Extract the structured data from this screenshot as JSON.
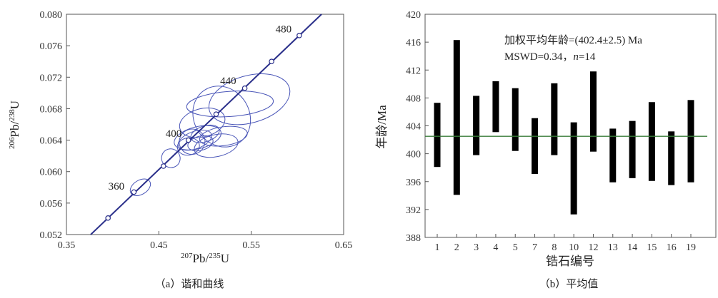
{
  "chart_data": [
    {
      "type": "scatter",
      "caption": "（a）谐和曲线",
      "xlabel": "207Pb/235U",
      "ylabel": "206Pb/238U",
      "xlim": [
        0.35,
        0.65
      ],
      "ylim": [
        0.052,
        0.08
      ],
      "xticks": [
        "0.35",
        "0.45",
        "0.55",
        "0.65"
      ],
      "yticks": [
        "0.052",
        "0.056",
        "0.060",
        "0.064",
        "0.068",
        "0.072",
        "0.076",
        "0.080"
      ],
      "concordia_points": [
        {
          "age": 340,
          "x": 0.395,
          "y": 0.0541
        },
        {
          "age": 360,
          "x": 0.423,
          "y": 0.0574
        },
        {
          "age": 380,
          "x": 0.455,
          "y": 0.0607
        },
        {
          "age": 400,
          "x": 0.482,
          "y": 0.064
        },
        {
          "age": 420,
          "x": 0.512,
          "y": 0.0673
        },
        {
          "age": 440,
          "x": 0.543,
          "y": 0.0706
        },
        {
          "age": 460,
          "x": 0.572,
          "y": 0.074
        },
        {
          "age": 480,
          "x": 0.602,
          "y": 0.0773
        }
      ],
      "age_labels": [
        {
          "text": "480",
          "x": 0.585,
          "y": 0.0777
        },
        {
          "text": "440",
          "x": 0.525,
          "y": 0.0711
        },
        {
          "text": "400",
          "x": 0.466,
          "y": 0.0644
        },
        {
          "text": "360",
          "x": 0.404,
          "y": 0.0577
        }
      ],
      "ellipses": [
        {
          "cx": 0.548,
          "cy": 0.0692,
          "rx": 0.045,
          "ry": 0.003,
          "rot": -16
        },
        {
          "cx": 0.527,
          "cy": 0.0686,
          "rx": 0.047,
          "ry": 0.0016,
          "rot": -4
        },
        {
          "cx": 0.518,
          "cy": 0.067,
          "rx": 0.03,
          "ry": 0.004,
          "rot": -32
        },
        {
          "cx": 0.497,
          "cy": 0.0662,
          "rx": 0.025,
          "ry": 0.0018,
          "rot": -14
        },
        {
          "cx": 0.52,
          "cy": 0.0645,
          "rx": 0.026,
          "ry": 0.0012,
          "rot": -8
        },
        {
          "cx": 0.512,
          "cy": 0.0633,
          "rx": 0.024,
          "ry": 0.0014,
          "rot": -12
        },
        {
          "cx": 0.492,
          "cy": 0.0643,
          "rx": 0.026,
          "ry": 0.0014,
          "rot": -14
        },
        {
          "cx": 0.489,
          "cy": 0.064,
          "rx": 0.019,
          "ry": 0.0011,
          "rot": -20
        },
        {
          "cx": 0.486,
          "cy": 0.0638,
          "rx": 0.014,
          "ry": 0.0016,
          "rot": -28
        },
        {
          "cx": 0.5,
          "cy": 0.0648,
          "rx": 0.016,
          "ry": 0.001,
          "rot": -18
        },
        {
          "cx": 0.482,
          "cy": 0.0632,
          "rx": 0.012,
          "ry": 0.0011,
          "rot": -10
        },
        {
          "cx": 0.495,
          "cy": 0.0636,
          "rx": 0.014,
          "ry": 0.0009,
          "rot": -15
        },
        {
          "cx": 0.463,
          "cy": 0.0617,
          "rx": 0.01,
          "ry": 0.0012,
          "rot": -30
        },
        {
          "cx": 0.43,
          "cy": 0.058,
          "rx": 0.012,
          "ry": 0.0009,
          "rot": -32
        }
      ]
    },
    {
      "type": "bar",
      "caption": "（b）平均值",
      "xlabel": "锆石编号",
      "ylabel": "年龄/Ma",
      "ylim": [
        388,
        420
      ],
      "yticks": [
        "388",
        "392",
        "396",
        "400",
        "404",
        "408",
        "412",
        "416",
        "420"
      ],
      "categories": [
        "1",
        "2",
        "3",
        "4",
        "5",
        "7",
        "8",
        "10",
        "12",
        "13",
        "14",
        "15",
        "16",
        "19"
      ],
      "ranges": [
        [
          398.1,
          407.3
        ],
        [
          394.1,
          416.3
        ],
        [
          399.8,
          408.3
        ],
        [
          403.1,
          410.4
        ],
        [
          400.4,
          409.4
        ],
        [
          397.1,
          405.1
        ],
        [
          399.8,
          410.1
        ],
        [
          391.3,
          404.5
        ],
        [
          400.3,
          411.8
        ],
        [
          395.9,
          403.6
        ],
        [
          396.5,
          404.7
        ],
        [
          396.1,
          407.4
        ],
        [
          395.5,
          403.2
        ],
        [
          395.9,
          407.7
        ]
      ],
      "mean": 402.5,
      "annotation_line1": "加权平均年龄=(402.4±2.5)  Ma",
      "annotation_line2_prefix": "MSWD=0.34，",
      "annotation_line2_n": "n",
      "annotation_line2_suffix": "=14",
      "mean_line_color": "#3a7d3a",
      "bar_color": "#000000",
      "ellipse_color": "#4a56b8"
    }
  ]
}
